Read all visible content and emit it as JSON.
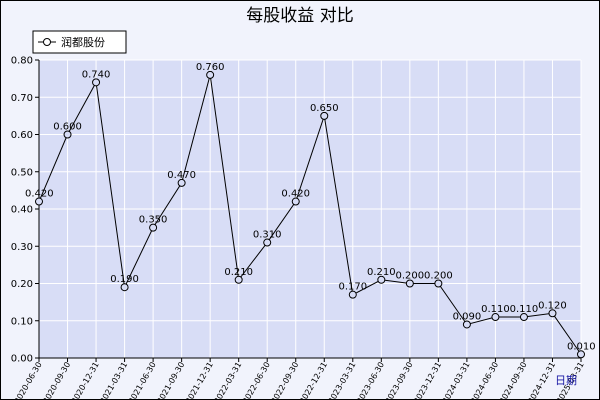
{
  "chart_data": {
    "type": "line",
    "title": "每股收益  对比",
    "xlabel": "日期",
    "ylabel": "",
    "ylim": [
      0,
      0.8
    ],
    "yticks": [
      "0.00",
      "0.10",
      "0.20",
      "0.30",
      "0.40",
      "0.50",
      "0.60",
      "0.70",
      "0.80"
    ],
    "grid": true,
    "legend_position": "top-left",
    "categories": [
      "2020-06-30",
      "2020-09-30",
      "2020-12-31",
      "2021-03-31",
      "2021-06-30",
      "2021-09-30",
      "2021-12-31",
      "2022-03-31",
      "2022-06-30",
      "2022-09-30",
      "2022-12-31",
      "2023-03-31",
      "2023-06-30",
      "2023-09-30",
      "2023-12-31",
      "2024-03-31",
      "2024-06-30",
      "2024-09-30",
      "2024-12-31",
      "2025-03-31"
    ],
    "series": [
      {
        "name": "润都股份",
        "color": "#000000",
        "values": [
          0.42,
          0.6,
          0.74,
          0.19,
          0.35,
          0.47,
          0.76,
          0.21,
          0.31,
          0.42,
          0.65,
          0.17,
          0.21,
          0.2,
          0.2,
          0.09,
          0.11,
          0.11,
          0.12,
          0.01
        ],
        "labels": [
          "0.420",
          "0.600",
          "0.740",
          "0.190",
          "0.350",
          "0.470",
          "0.760",
          "0.210",
          "0.310",
          "0.420",
          "0.650",
          "0.170",
          "0.210",
          "0.200",
          "0.200",
          "0.090",
          "0.110",
          "0.110",
          "0.120",
          "0.010"
        ]
      }
    ]
  },
  "colors": {
    "plot_background": "#d8ddf6",
    "outer_background": "#f1f3fc",
    "grid": "#ffffff",
    "line": "#000000",
    "axis_label": "#1a1aa6"
  }
}
